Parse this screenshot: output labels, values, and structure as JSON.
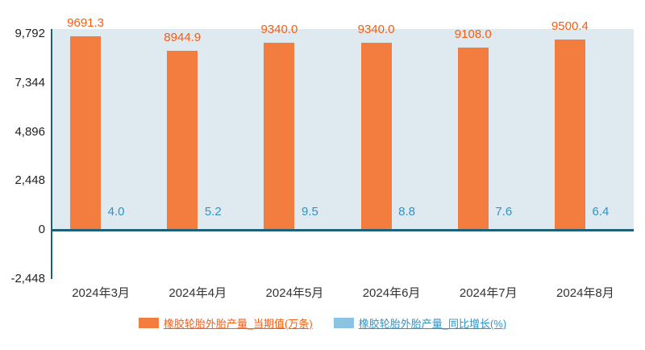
{
  "chart_data": {
    "type": "bar",
    "categories": [
      "2024年3月",
      "2024年4月",
      "2024年5月",
      "2024年6月",
      "2024年7月",
      "2024年8月"
    ],
    "series": [
      {
        "name": "橡胶轮胎外胎产量_当期值(万条)",
        "values": [
          9691.3,
          8944.9,
          9340.0,
          9340.0,
          9108.0,
          9500.4
        ],
        "color": "#f27d3f",
        "label_color": "#fa5b0f"
      },
      {
        "name": "橡胶轮胎外胎产量_同比增长(%)",
        "values": [
          4.0,
          5.2,
          9.5,
          8.8,
          7.6,
          6.4
        ],
        "color": "#8cc3e2",
        "label_color": "#2f93c6"
      }
    ],
    "y_ticks": [
      {
        "value": 9792,
        "label": "9,792"
      },
      {
        "value": 7344,
        "label": "7,344"
      },
      {
        "value": 4896,
        "label": "4,896"
      },
      {
        "value": 2448,
        "label": "2,448"
      },
      {
        "value": 0,
        "label": "0"
      },
      {
        "value": -2448,
        "label": "-2,448"
      }
    ],
    "ylim": [
      -2448,
      9792
    ],
    "title": "",
    "xlabel": "",
    "ylabel": "",
    "grid": false,
    "legend_position": "bottom",
    "plot_bg": "#dfe9f0",
    "axis_color": "#1e6079"
  }
}
